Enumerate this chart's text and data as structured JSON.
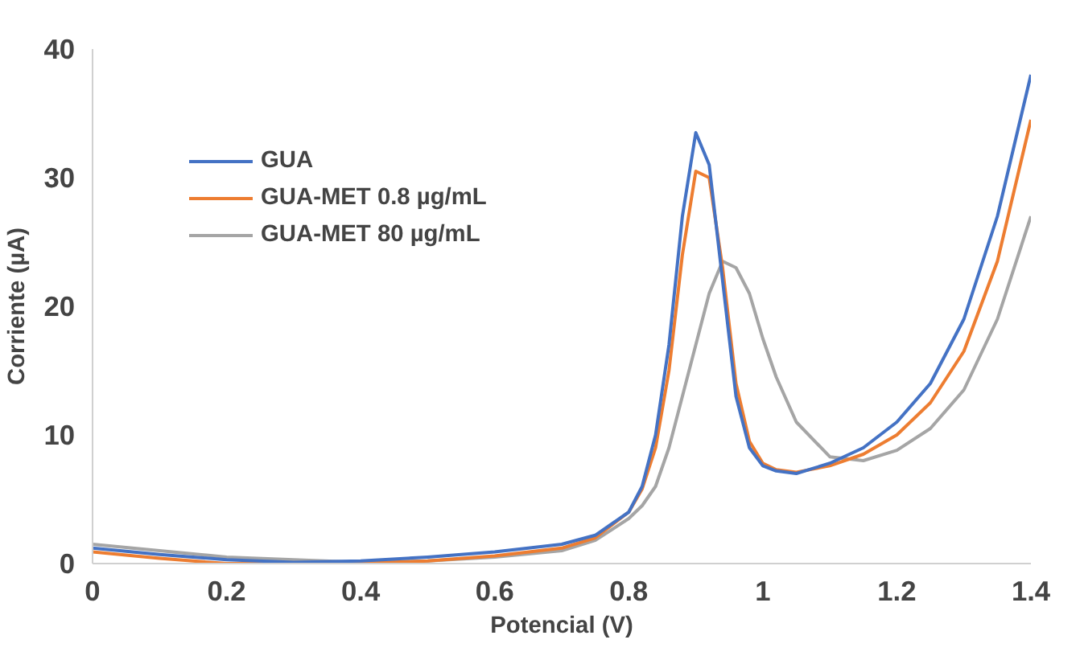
{
  "chart_data": {
    "type": "line",
    "xlabel": "Potencial (V)",
    "ylabel": "Corriente (µA)",
    "xlim": [
      0,
      1.4
    ],
    "xticks": [
      0,
      0.2,
      0.4,
      0.6,
      0.8,
      1,
      1.2,
      1.4
    ],
    "ylim": [
      0,
      40
    ],
    "yticks": [
      0,
      10,
      20,
      30,
      40
    ],
    "grid": false,
    "legend": "top left",
    "marker": "none",
    "line_style": "solid",
    "x": [
      0,
      0.1,
      0.2,
      0.3,
      0.4,
      0.5,
      0.6,
      0.7,
      0.75,
      0.8,
      0.82,
      0.84,
      0.86,
      0.88,
      0.9,
      0.92,
      0.94,
      0.96,
      0.98,
      1.0,
      1.02,
      1.05,
      1.1,
      1.15,
      1.2,
      1.25,
      1.3,
      1.35,
      1.4
    ],
    "series": [
      {
        "name": "GUA",
        "color": "#4472c4",
        "values": [
          1.2,
          0.7,
          0.3,
          0.1,
          0.2,
          0.5,
          0.9,
          1.5,
          2.2,
          4,
          6,
          10,
          17,
          27,
          33.5,
          31,
          22,
          13,
          9,
          7.6,
          7.2,
          7.0,
          7.8,
          9.0,
          11,
          14,
          19,
          27,
          38
        ]
      },
      {
        "name": "GUA-MET 0.8 µg/mL",
        "color": "#ed7d31",
        "values": [
          0.9,
          0.4,
          0.0,
          0.0,
          0.0,
          0.2,
          0.6,
          1.2,
          2.0,
          4,
          5.8,
          9,
          15,
          24,
          30.5,
          30,
          23,
          14,
          9.5,
          7.8,
          7.3,
          7.1,
          7.6,
          8.5,
          10,
          12.5,
          16.5,
          23.5,
          34.5
        ]
      },
      {
        "name": "GUA-MET 80 µg/mL",
        "color": "#a5a5a5",
        "values": [
          1.5,
          1.0,
          0.5,
          0.3,
          0.1,
          0.2,
          0.5,
          1.0,
          1.8,
          3.5,
          4.5,
          6,
          9,
          13,
          17,
          21,
          23.5,
          23,
          21,
          17.5,
          14.5,
          11,
          8.3,
          8.0,
          8.8,
          10.5,
          13.5,
          19,
          27
        ]
      }
    ]
  }
}
